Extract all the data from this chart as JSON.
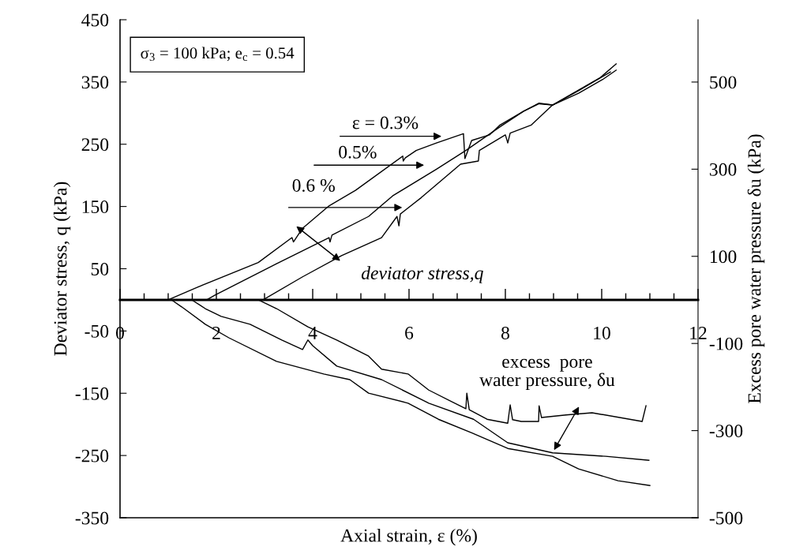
{
  "chart_data": {
    "type": "line",
    "xlabel": "Axial strain, ε (%)",
    "ylabel": "Deviator stress, q (kPa)",
    "y2label": "Excess pore water pressure δu (kPa)",
    "xlim": [
      0,
      12
    ],
    "xticks": [
      0,
      2,
      4,
      6,
      8,
      10,
      12
    ],
    "ylim": [
      -350,
      450
    ],
    "yticks": [
      -350,
      -250,
      -150,
      -50,
      50,
      150,
      250,
      350,
      450
    ],
    "y2lim": [
      -500,
      643
    ],
    "y2ticks": [
      -500,
      -300,
      -100,
      100,
      300,
      500
    ],
    "grid": false,
    "legend": false,
    "marker": "none",
    "line_style": "solid",
    "series": [
      {
        "color": "#000000",
        "x": [
          0,
          1.0,
          1.6,
          2.87,
          3.57,
          3.6,
          3.79,
          4.34,
          4.89,
          5.87,
          5.88,
          5.92,
          6.15,
          6.57,
          7.13,
          7.16,
          7.3,
          7.67,
          7.89,
          8.38,
          8.7,
          8.98,
          9.52,
          9.97,
          10.3
        ],
        "values": [
          0,
          0,
          20,
          60,
          100,
          93,
          115,
          151,
          176,
          231,
          223,
          228,
          240,
          252,
          267,
          227,
          256,
          265,
          281,
          303,
          316,
          313,
          337,
          357,
          379
        ]
      },
      {
        "color": "#000000",
        "x": [
          0,
          1.8,
          1.98,
          3.25,
          4.34,
          4.36,
          4.4,
          5.16,
          5.66,
          6.57,
          7.18,
          7.89,
          8.38,
          8.7,
          8.98,
          9.52,
          10.18
        ],
        "values": [
          0,
          0,
          8,
          58,
          100,
          93,
          104,
          134,
          167,
          210,
          240,
          278,
          303,
          315,
          313,
          336,
          366
        ]
      },
      {
        "color": "#000000",
        "x": [
          0,
          2.97,
          3.79,
          4.6,
          5.43,
          5.75,
          5.79,
          5.82,
          6.25,
          7.07,
          7.44,
          7.46,
          8.0,
          8.05,
          8.1,
          8.54,
          8.98,
          9.52,
          10.02,
          10.3
        ],
        "values": [
          0,
          0,
          37,
          71,
          100,
          134,
          119,
          138,
          164,
          218,
          223,
          240,
          265,
          252,
          268,
          281,
          313,
          332,
          354,
          369
        ]
      },
      {
        "color": "#000000",
        "axis": "y2",
        "x": [
          0,
          1.07,
          1.28,
          1.77,
          2.26,
          3.25,
          4.23,
          4.77,
          5.16,
          5.98,
          6.61,
          7.3,
          8.05,
          8.98,
          9.52,
          10.34,
          11.0
        ],
        "values": [
          0,
          0,
          -16,
          -56,
          -87,
          -141,
          -170,
          -183,
          -214,
          -237,
          -274,
          -305,
          -341,
          -359,
          -388,
          -415,
          -426
        ]
      },
      {
        "color": "#000000",
        "axis": "y2",
        "x": [
          0,
          1.49,
          1.77,
          2.1,
          2.7,
          3.36,
          3.79,
          3.9,
          4.0,
          4.5,
          5.43,
          6.41,
          7.34,
          8.05,
          8.98,
          10.08,
          10.98
        ],
        "values": [
          0,
          0,
          -20,
          -38,
          -56,
          -92,
          -114,
          -92,
          -105,
          -152,
          -183,
          -237,
          -274,
          -328,
          -351,
          -359,
          -368
        ]
      },
      {
        "color": "#000000",
        "axis": "y2",
        "x": [
          0,
          2.87,
          3.25,
          3.9,
          4.5,
          5.16,
          5.43,
          5.98,
          6.41,
          7.18,
          7.2,
          7.25,
          7.62,
          8.05,
          8.1,
          8.15,
          8.33,
          8.69,
          8.7,
          8.75,
          9.26,
          9.8,
          10.84,
          10.92
        ],
        "values": [
          0,
          0,
          -20,
          -62,
          -92,
          -129,
          -159,
          -170,
          -207,
          -250,
          -214,
          -252,
          -274,
          -283,
          -241,
          -275,
          -279,
          -279,
          -243,
          -270,
          -264,
          -259,
          -279,
          -243
        ]
      }
    ],
    "annotations": [
      "σ$_{3}$ = 100 kPa; e$_{c}$ = 0.54",
      "ε = 0.3%",
      "0.5%",
      "0.6 %",
      "deviator stress,q",
      "excess  pore\nwater pressure, δu"
    ]
  }
}
